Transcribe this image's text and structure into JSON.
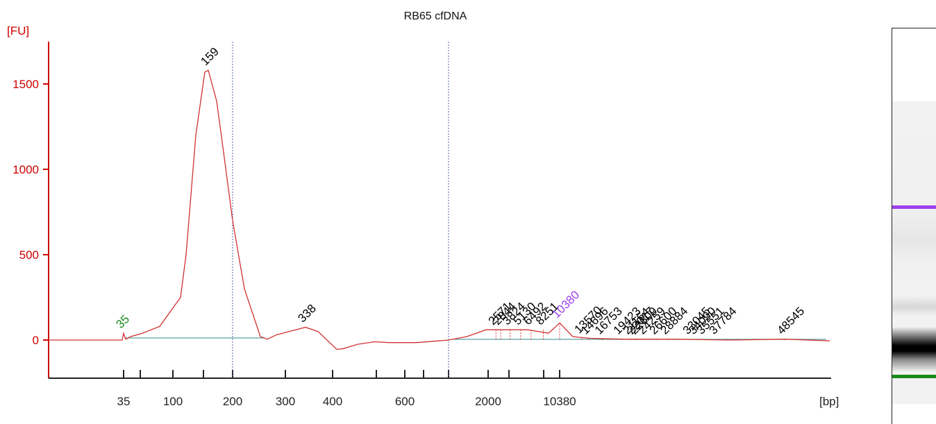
{
  "chart_data": {
    "type": "line",
    "title": "RB65 cfDNA",
    "ylabel": "[FU]",
    "xlabel": "[bp]",
    "ylim": [
      -220,
      1750
    ],
    "y_ticks": [
      0,
      500,
      1000,
      1500
    ],
    "x_ticks": [
      "35",
      "",
      "100",
      "",
      "200",
      "300",
      "400",
      "",
      "600",
      "",
      "",
      "2000",
      "",
      "",
      "10380"
    ],
    "grid": false,
    "colors": {
      "trace": "#d03030",
      "axis": "#cc0000",
      "baseline": "#5aa0a0",
      "lower_marker": "#1a8a1a",
      "upper_marker": "#a040f0",
      "peak_label": "#000000"
    },
    "peaks": [
      {
        "label": "35",
        "bp": 35,
        "fu": 40,
        "color": "#1a8a1a"
      },
      {
        "label": "159",
        "bp": 159,
        "fu": 1580,
        "color": "#000000"
      },
      {
        "label": "338",
        "bp": 338,
        "fu": 75,
        "color": "#000000"
      },
      {
        "label": "2571",
        "bp": 2571,
        "fu": 60,
        "color": "#000000"
      },
      {
        "label": "2844",
        "bp": 2844,
        "fu": 60,
        "color": "#000000"
      },
      {
        "label": "3824",
        "bp": 3824,
        "fu": 60,
        "color": "#000000"
      },
      {
        "label": "5130",
        "bp": 5130,
        "fu": 60,
        "color": "#000000"
      },
      {
        "label": "6492",
        "bp": 6492,
        "fu": 60,
        "color": "#000000"
      },
      {
        "label": "8251",
        "bp": 8251,
        "fu": 60,
        "color": "#000000"
      },
      {
        "label": "10380",
        "bp": 10380,
        "fu": 100,
        "color": "#a040f0"
      },
      {
        "label": "13570",
        "bp": 13570,
        "fu": 10,
        "color": "#000000"
      },
      {
        "label": "14696",
        "bp": 14696,
        "fu": 5,
        "color": "#000000"
      },
      {
        "label": "16753",
        "bp": 16753,
        "fu": 5,
        "color": "#000000"
      },
      {
        "label": "19423",
        "bp": 19423,
        "fu": 5,
        "color": "#000000"
      },
      {
        "label": "21164",
        "bp": 21164,
        "fu": 5,
        "color": "#000000"
      },
      {
        "label": "22017",
        "bp": 22017,
        "fu": 5,
        "color": "#000000"
      },
      {
        "label": "22609",
        "bp": 22609,
        "fu": 5,
        "color": "#000000"
      },
      {
        "label": "24259",
        "bp": 24259,
        "fu": 5,
        "color": "#000000"
      },
      {
        "label": "26600",
        "bp": 26600,
        "fu": 5,
        "color": "#000000"
      },
      {
        "label": "28884",
        "bp": 28884,
        "fu": 5,
        "color": "#000000"
      },
      {
        "label": "33045",
        "bp": 33045,
        "fu": 5,
        "color": "#000000"
      },
      {
        "label": "34090",
        "bp": 34090,
        "fu": 5,
        "color": "#000000"
      },
      {
        "label": "35551",
        "bp": 35551,
        "fu": 5,
        "color": "#000000"
      },
      {
        "label": "37784",
        "bp": 37784,
        "fu": 5,
        "color": "#000000"
      },
      {
        "label": "48545",
        "bp": 48545,
        "fu": 5,
        "color": "#000000"
      }
    ],
    "trace_description_points": {
      "bp_index": [
        28,
        33,
        35,
        36,
        40,
        50,
        70,
        90,
        100,
        120,
        140,
        159,
        170,
        185,
        200,
        220,
        240,
        260,
        280,
        300,
        338,
        360,
        400,
        420,
        480,
        550,
        600,
        700,
        900,
        1500,
        2000,
        3000,
        6000,
        9000,
        10380,
        12000,
        15000,
        20000,
        30000,
        40000,
        48545,
        60000
      ],
      "fu": [
        0,
        0,
        40,
        5,
        20,
        40,
        80,
        250,
        500,
        1200,
        1570,
        1580,
        1400,
        1100,
        700,
        300,
        20,
        5,
        30,
        45,
        75,
        50,
        -55,
        -50,
        -25,
        -10,
        -15,
        -15,
        0,
        20,
        60,
        60,
        60,
        40,
        100,
        20,
        10,
        5,
        5,
        0,
        5,
        -5
      ]
    }
  }
}
